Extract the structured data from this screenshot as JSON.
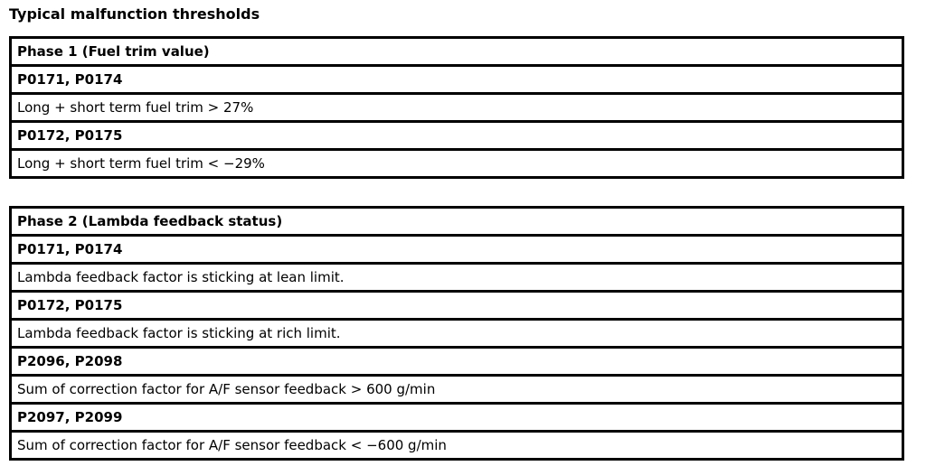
{
  "title": "Typical malfunction thresholds",
  "phase1": {
    "heading": "Phase 1 (Fuel trim value)",
    "rows": [
      {
        "codes": "P0171, P0174",
        "condition": "Long + short term fuel trim > 27%"
      },
      {
        "codes": "P0172, P0175",
        "condition": "Long + short term fuel trim < −29%"
      }
    ]
  },
  "phase2": {
    "heading": "Phase 2 (Lambda feedback status)",
    "rows": [
      {
        "codes": "P0171, P0174",
        "condition": "Lambda feedback factor is sticking at lean limit."
      },
      {
        "codes": "P0172, P0175",
        "condition": "Lambda feedback factor is sticking at rich limit."
      },
      {
        "codes": "P2096, P2098",
        "condition": "Sum of correction factor for A/F sensor feedback > 600 g/min"
      },
      {
        "codes": "P2097, P2099",
        "condition": "Sum of correction factor for A/F sensor feedback < −600 g/min"
      }
    ]
  }
}
